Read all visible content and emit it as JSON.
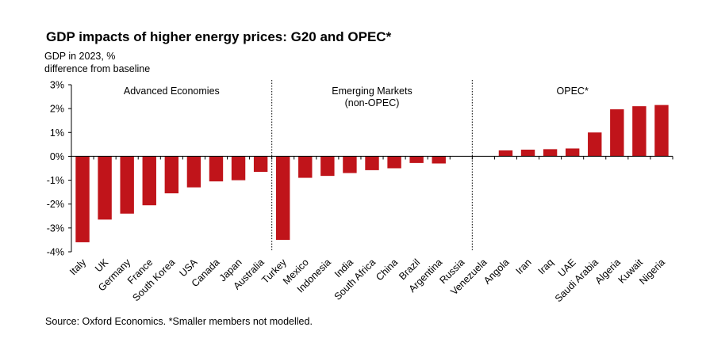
{
  "title": "GDP impacts of higher energy prices: G20 and OPEC*",
  "subtitle_line1": "GDP in 2023, %",
  "subtitle_line2": "difference from baseline",
  "source": "Source: Oxford Economics. *Smaller members not modelled.",
  "colors": {
    "bar": "#c0141a",
    "axis": "#000000",
    "divider": "#000000"
  },
  "chart_data": {
    "type": "bar",
    "title": "GDP impacts of higher energy prices: G20 and OPEC*",
    "ylabel": "GDP in 2023, % difference from baseline",
    "ylim": [
      -4,
      3
    ],
    "yticks": [
      3,
      2,
      1,
      0,
      -1,
      -2,
      -3,
      -4
    ],
    "ytick_labels": [
      "3%",
      "2%",
      "1%",
      "0%",
      "-1%",
      "-2%",
      "-3%",
      "-4%"
    ],
    "grid": false,
    "categories": [
      "Italy",
      "UK",
      "Germany",
      "France",
      "South Korea",
      "USA",
      "Canada",
      "Japan",
      "Australia",
      "Turkey",
      "Mexico",
      "Indonesia",
      "India",
      "South Africa",
      "China",
      "Brazil",
      "Argentina",
      "Russia",
      "Venezuela",
      "Angola",
      "Iran",
      "Iraq",
      "UAE",
      "Saudi Arabia",
      "Algeria",
      "Kuwait",
      "Nigeria"
    ],
    "values": [
      -3.6,
      -2.65,
      -2.4,
      -2.05,
      -1.55,
      -1.3,
      -1.05,
      -1.0,
      -0.65,
      -3.5,
      -0.9,
      -0.82,
      -0.7,
      -0.58,
      -0.5,
      -0.28,
      -0.3,
      0.0,
      0.0,
      0.25,
      0.28,
      0.3,
      0.33,
      1.0,
      1.97,
      2.1,
      2.15
    ],
    "groups": [
      {
        "label_lines": [
          "Advanced Economies"
        ],
        "start": 0,
        "end": 8
      },
      {
        "label_lines": [
          "Emerging Markets",
          "(non-OPEC)"
        ],
        "start": 9,
        "end": 17
      },
      {
        "label_lines": [
          "OPEC*"
        ],
        "start": 18,
        "end": 26
      }
    ]
  }
}
